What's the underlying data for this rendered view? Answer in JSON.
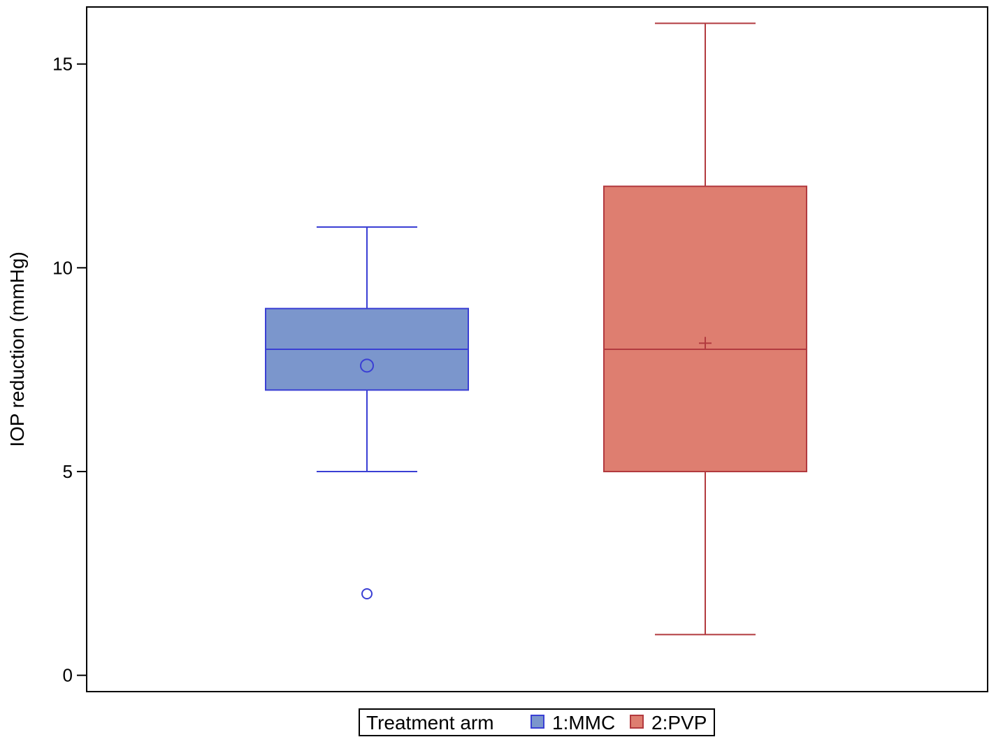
{
  "chart_data": {
    "type": "boxplot",
    "title": "",
    "xlabel": "",
    "ylabel": "IOP reduction (mmHg)",
    "ylim": [
      -0.4,
      16.4
    ],
    "yticks": [
      "0",
      "5",
      "10",
      "15"
    ],
    "grid": false,
    "legend": {
      "placement": "bottom-center",
      "title": "Treatment arm"
    },
    "series": [
      {
        "name": "1:MMC",
        "color": "#7b96cc",
        "edge_color": "#3a3fd4",
        "min": 5,
        "q1": 7,
        "median": 8,
        "q3": 9,
        "max": 11,
        "mean": 7.6,
        "mean_marker": "circle",
        "outliers": [
          2
        ]
      },
      {
        "name": "2:PVP",
        "color": "#de7e70",
        "edge_color": "#b23a3f",
        "min": 1,
        "q1": 5,
        "median": 8,
        "q3": 12,
        "max": 16,
        "mean": 8.15,
        "mean_marker": "plus",
        "outliers": []
      }
    ]
  }
}
